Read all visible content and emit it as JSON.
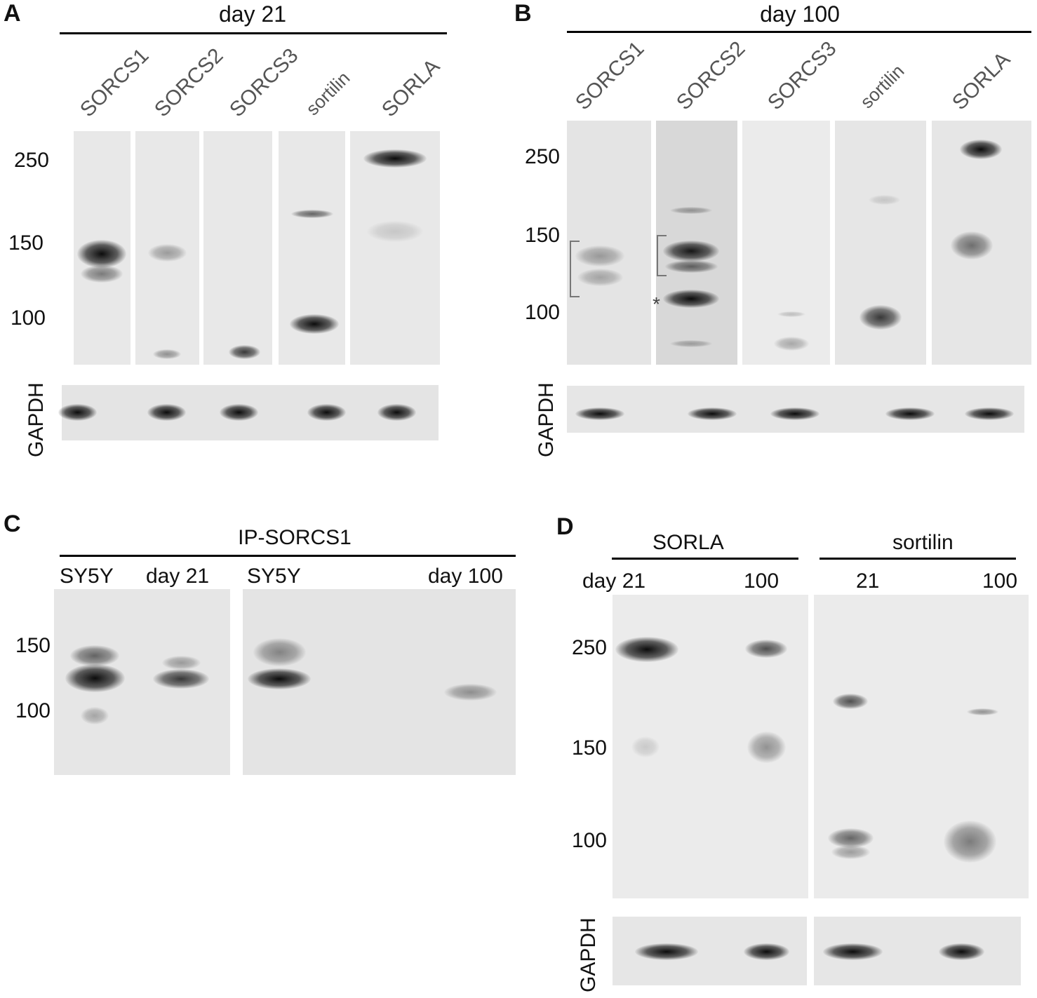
{
  "panelA": {
    "label": "A",
    "title": "day 21",
    "lanes": [
      "SORCS1",
      "SORCS2",
      "SORCS3",
      "sortilin",
      "SORLA"
    ],
    "mw": [
      "250",
      "150",
      "100"
    ],
    "loading": "GAPDH"
  },
  "panelB": {
    "label": "B",
    "title": "day 100",
    "lanes": [
      "SORCS1",
      "SORCS2",
      "SORCS3",
      "sortilin",
      "SORLA"
    ],
    "mw": [
      "250",
      "150",
      "100"
    ],
    "loading": "GAPDH",
    "asterisk": "*"
  },
  "panelC": {
    "label": "C",
    "title": "IP-SORCS1",
    "lanes": [
      "SY5Y",
      "day 21",
      "SY5Y",
      "day 100"
    ],
    "mw": [
      "150",
      "100"
    ]
  },
  "panelD": {
    "label": "D",
    "groups": [
      "SORLA",
      "sortilin"
    ],
    "lanes": [
      "day 21",
      "100",
      "21",
      "100"
    ],
    "mw": [
      "250",
      "150",
      "100"
    ],
    "loading": "GAPDH"
  }
}
